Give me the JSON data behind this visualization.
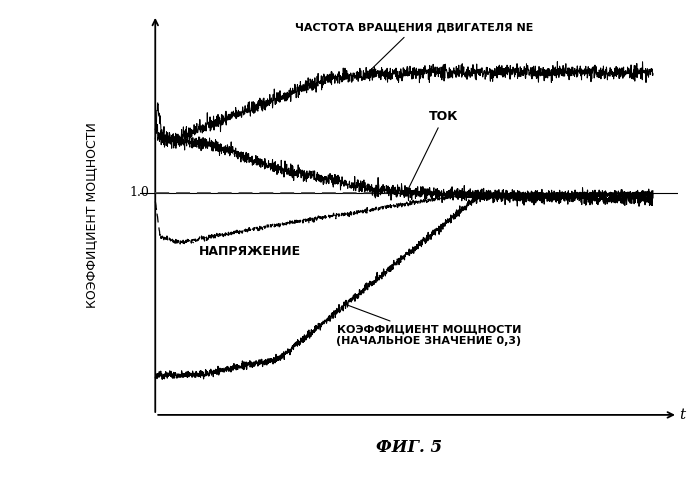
{
  "ylabel": "КОЭФФИЦИЕНТ МОЩНОСТИ",
  "xlabel": "t",
  "fig_label": "ФИГ. 5",
  "background_color": "#ffffff",
  "ann_ne": "ЧАСТОТА ВРАЩЕНИЯ ДВИГАТЕЛЯ NE",
  "ann_tok": "ТОК",
  "ann_napr": "НАПРЯЖЕНИЕ",
  "ann_kpd": "КОЭФФИЦИЕНТ МОЩНОСТИ\n(НАЧАЛЬНОЕ ЗНАЧЕНИЕ 0,3)"
}
